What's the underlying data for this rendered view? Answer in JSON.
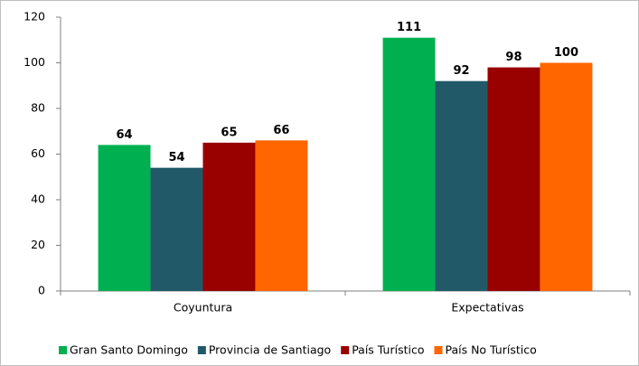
{
  "chart_data": {
    "type": "bar",
    "categories": [
      "Coyuntura",
      "Expectativas"
    ],
    "series": [
      {
        "name": "Gran Santo Domingo",
        "color": "#00b050",
        "values": [
          64,
          111
        ]
      },
      {
        "name": "Provincia de Santiago",
        "color": "#215968",
        "values": [
          54,
          92
        ]
      },
      {
        "name": "País Turístico",
        "color": "#990000",
        "values": [
          65,
          98
        ]
      },
      {
        "name": "País No Turístico",
        "color": "#ff6600",
        "values": [
          66,
          100
        ]
      }
    ],
    "ylim": [
      0,
      120
    ],
    "yticks": [
      0,
      20,
      40,
      60,
      80,
      100,
      120
    ],
    "legend": "bottom",
    "data_labels": true
  }
}
